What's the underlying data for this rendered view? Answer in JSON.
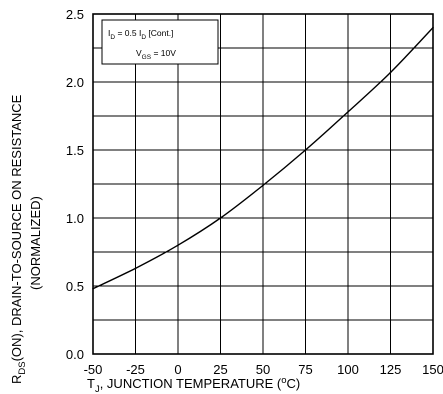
{
  "chart_data": {
    "type": "line",
    "title": "",
    "xlabel": {
      "pre": "T",
      "sub": "J",
      "post": ", JUNCTION TEMPERATURE (",
      "unit_sup": "o",
      "unit_end": "C)"
    },
    "ylabel": {
      "pre": "R",
      "sub": "DS",
      "post": "(ON), DRAIN-TO-SOURCE ON RESISTANCE",
      "line2": "(NORMALIZED)"
    },
    "xlim": [
      -50,
      150
    ],
    "ylim": [
      0.0,
      2.5
    ],
    "x_ticks": [
      -50,
      -25,
      0,
      25,
      50,
      75,
      100,
      125,
      150
    ],
    "x_tick_labels": [
      "-50",
      "-25",
      "0",
      "25",
      "50",
      "75",
      "100",
      "125",
      "150"
    ],
    "y_ticks": [
      0.0,
      0.5,
      1.0,
      1.5,
      2.0,
      2.5
    ],
    "y_tick_labels": [
      "0.0",
      "0.5",
      "1.0",
      "1.5",
      "2.0",
      "2.5"
    ],
    "grid": true,
    "series": [
      {
        "x": [
          -50,
          -25,
          0,
          25,
          50,
          75,
          100,
          125,
          150
        ],
        "y": [
          0.48,
          0.63,
          0.8,
          1.0,
          1.24,
          1.5,
          1.78,
          2.07,
          2.4
        ]
      }
    ],
    "annotation": {
      "line1_pre": "I",
      "line1_sub": "D",
      "line1_mid": " = 0.5  I",
      "line1_sub2": "D",
      "line1_post": " [Cont.]",
      "line2_pre": "V",
      "line2_sub": "GS",
      "line2_post": " = 10V"
    }
  }
}
